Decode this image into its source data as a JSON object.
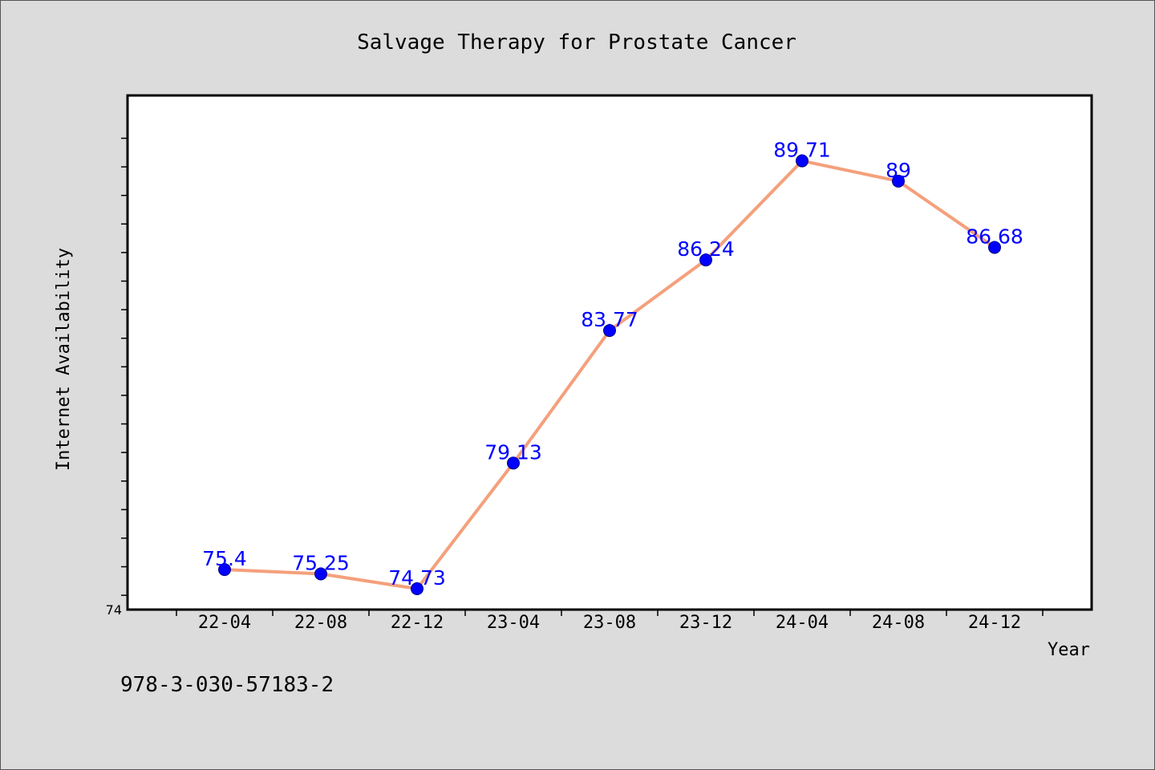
{
  "chart_data": {
    "type": "line",
    "title": "Salvage Therapy for Prostate Cancer",
    "xlabel": "Year",
    "ylabel": "Internet Availability",
    "categories": [
      "22-04",
      "22-08",
      "22-12",
      "23-04",
      "23-08",
      "23-12",
      "24-04",
      "24-08",
      "24-12"
    ],
    "series": [
      {
        "values": [
          75.4,
          75.25,
          74.73,
          79.13,
          83.77,
          86.24,
          89.71,
          89,
          86.68
        ],
        "labels": [
          "75.4",
          "75.25",
          "74.73",
          "79.13",
          "83.77",
          "86.24",
          "89.71",
          "89",
          "86.68"
        ]
      }
    ],
    "ylim": [
      74,
      92
    ],
    "y_tick_labels": [
      "74"
    ],
    "grid": false,
    "legend": "none"
  },
  "footer": {
    "isbn": "978-3-030-57183-2"
  },
  "colors": {
    "background": "#dcdcdc",
    "plot_area": "#ffffff",
    "line": "#f4a07c",
    "marker": "#0000ff",
    "data_label": "#0000ff"
  }
}
